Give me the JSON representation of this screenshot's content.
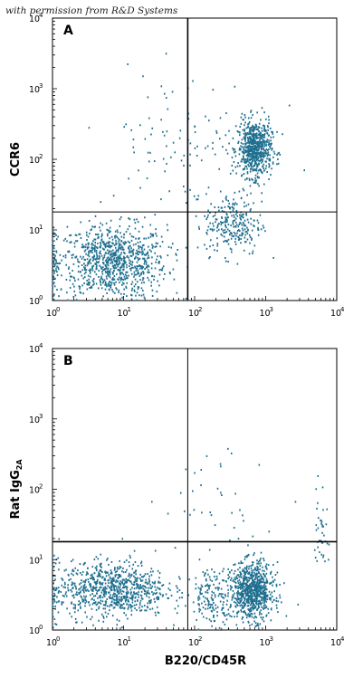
{
  "watermark": "with permission from R&D Systems",
  "dot_color": "#1f6f8f",
  "chart_data": [
    {
      "type": "scatter",
      "panel_label": "A",
      "x_scale": "log",
      "y_scale": "log",
      "xlim": [
        1,
        10000
      ],
      "ylim": [
        1,
        10000
      ],
      "x_ticks": [
        {
          "base": "10",
          "exp": "0"
        },
        {
          "base": "10",
          "exp": "1"
        },
        {
          "base": "10",
          "exp": "2"
        },
        {
          "base": "10",
          "exp": "3"
        },
        {
          "base": "10",
          "exp": "4"
        }
      ],
      "y_ticks": [
        {
          "base": "10",
          "exp": "0"
        },
        {
          "base": "10",
          "exp": "1"
        },
        {
          "base": "10",
          "exp": "2"
        },
        {
          "base": "10",
          "exp": "3"
        },
        {
          "base": "10",
          "exp": "4"
        }
      ],
      "xlabel": "",
      "ylabel": "CCR6",
      "ylabel_sub": "",
      "gate_x": 80,
      "gate_y": 18,
      "clusters": [
        {
          "cx": 7,
          "cy": 3.5,
          "spread_x": 0.38,
          "spread_y": 0.26,
          "count": 900
        },
        {
          "cx": 700,
          "cy": 140,
          "spread_x": 0.12,
          "spread_y": 0.2,
          "count": 650
        },
        {
          "cx": 350,
          "cy": 12,
          "spread_x": 0.2,
          "spread_y": 0.22,
          "count": 260
        },
        {
          "cx": 80,
          "cy": 180,
          "spread_x": 0.6,
          "spread_y": 0.5,
          "count": 110
        },
        {
          "cx": 1,
          "cy": 3,
          "spread_x": 0.03,
          "spread_y": 0.3,
          "count": 90
        }
      ]
    },
    {
      "type": "scatter",
      "panel_label": "B",
      "x_scale": "log",
      "y_scale": "log",
      "xlim": [
        1,
        10000
      ],
      "ylim": [
        1,
        10000
      ],
      "x_ticks": [
        {
          "base": "10",
          "exp": "0"
        },
        {
          "base": "10",
          "exp": "1"
        },
        {
          "base": "10",
          "exp": "2"
        },
        {
          "base": "10",
          "exp": "3"
        },
        {
          "base": "10",
          "exp": "4"
        }
      ],
      "y_ticks": [
        {
          "base": "10",
          "exp": "0"
        },
        {
          "base": "10",
          "exp": "1"
        },
        {
          "base": "10",
          "exp": "2"
        },
        {
          "base": "10",
          "exp": "3"
        },
        {
          "base": "10",
          "exp": "4"
        }
      ],
      "xlabel": "B220/CD45R",
      "ylabel": "Rat IgG",
      "ylabel_sub": "2A",
      "gate_x": 80,
      "gate_y": 18,
      "clusters": [
        {
          "cx": 7,
          "cy": 3.8,
          "spread_x": 0.38,
          "spread_y": 0.2,
          "count": 800
        },
        {
          "cx": 650,
          "cy": 3.5,
          "spread_x": 0.15,
          "spread_y": 0.2,
          "count": 800
        },
        {
          "cx": 180,
          "cy": 3,
          "spread_x": 0.15,
          "spread_y": 0.2,
          "count": 160
        },
        {
          "cx": 300,
          "cy": 60,
          "spread_x": 0.5,
          "spread_y": 0.4,
          "count": 40
        },
        {
          "cx": 6000,
          "cy": 30,
          "spread_x": 0.05,
          "spread_y": 0.3,
          "count": 40
        },
        {
          "cx": 1,
          "cy": 3,
          "spread_x": 0.03,
          "spread_y": 0.3,
          "count": 80
        }
      ]
    }
  ]
}
